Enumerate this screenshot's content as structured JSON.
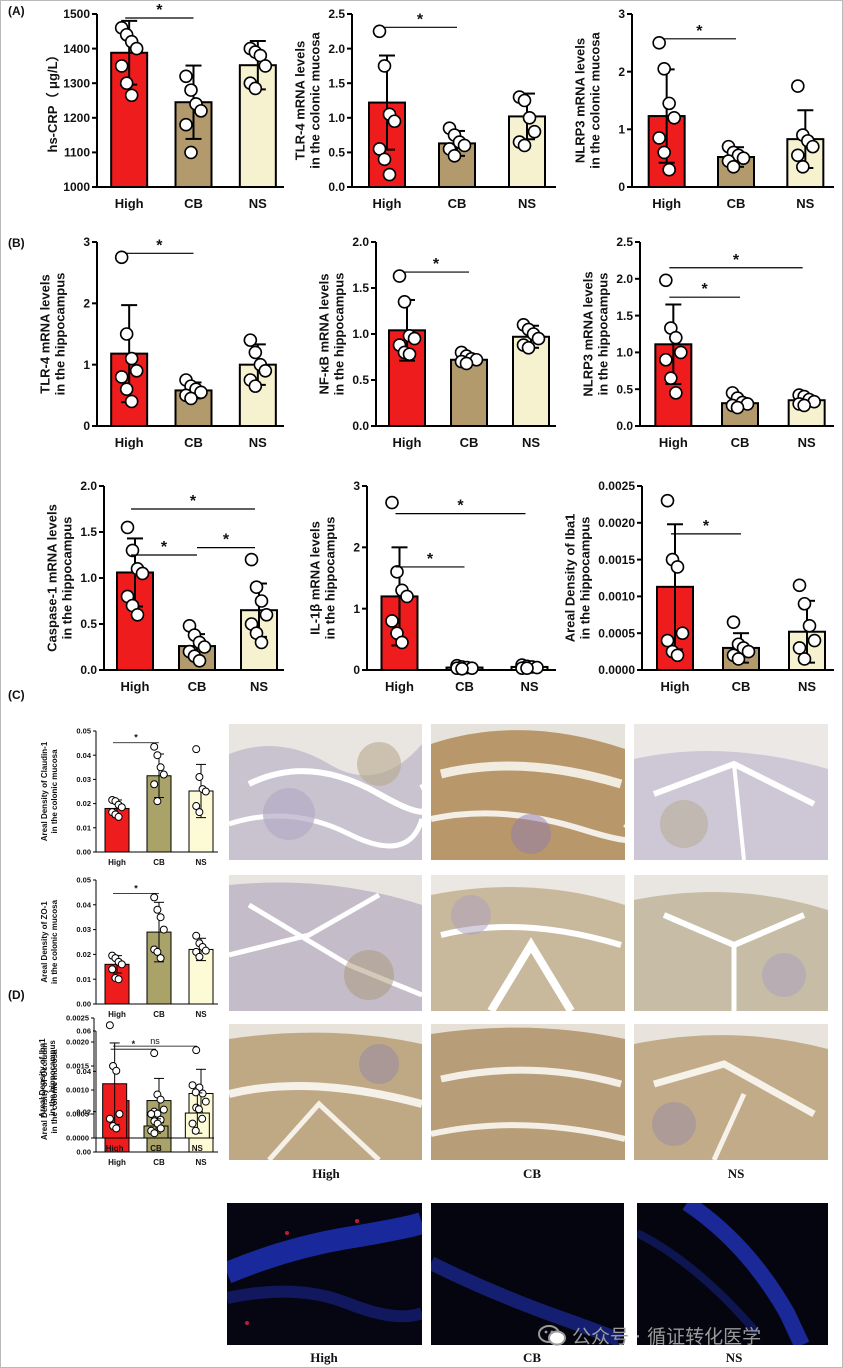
{
  "panel_letters": [
    "(A)",
    "(B)",
    "(C)",
    "(D)"
  ],
  "group_labels": [
    "High",
    "CB",
    "NS"
  ],
  "watermark_text": "公众号 · 循证转化医学",
  "colors": {
    "high_bar": "#ee1c1c",
    "cb_bar": "#b29a6d",
    "ns_bar": "#f6f2cf",
    "cb_bar_c": "#a9a36a",
    "ns_bar_c": "#fdfbd5",
    "ihc_background": "#e9e6e2",
    "if_background": "#050612"
  },
  "chart_data": [
    {
      "id": "A1",
      "type": "bar",
      "ylabel": [
        "hs-CRP（ μg/L）"
      ],
      "categories": [
        "High",
        "CB",
        "NS"
      ],
      "values": [
        1388,
        1245,
        1352
      ],
      "errors": [
        92,
        106,
        70
      ],
      "points": [
        [
          1460,
          1440,
          1420,
          1400,
          1350,
          1300,
          1265
        ],
        [
          1320,
          1280,
          1240,
          1220,
          1180,
          1100
        ],
        [
          1400,
          1390,
          1380,
          1350,
          1300,
          1285
        ]
      ],
      "ylim": [
        1000,
        1500
      ],
      "yticks": [
        "1000",
        "1100",
        "1200",
        "1300",
        "1400",
        "1500"
      ],
      "sig": [
        {
          "from": 0,
          "to": 1,
          "label": "*"
        }
      ]
    },
    {
      "id": "A2",
      "type": "bar",
      "ylabel": [
        "TLR-4 mRNA levels",
        "in the colonic mucosa"
      ],
      "categories": [
        "High",
        "CB",
        "NS"
      ],
      "values": [
        1.22,
        0.63,
        1.02
      ],
      "errors": [
        0.68,
        0.18,
        0.33
      ],
      "points": [
        [
          2.25,
          1.75,
          1.05,
          0.95,
          0.55,
          0.4,
          0.18
        ],
        [
          0.85,
          0.75,
          0.65,
          0.6,
          0.55,
          0.45
        ],
        [
          1.3,
          1.25,
          1.0,
          0.8,
          0.65,
          0.6
        ]
      ],
      "ylim": [
        0,
        2.5
      ],
      "yticks": [
        "0.0",
        "0.5",
        "1.0",
        "1.5",
        "2.0",
        "2.5"
      ],
      "sig": [
        {
          "from": 0,
          "to": 1,
          "label": "*"
        }
      ]
    },
    {
      "id": "A3",
      "type": "bar",
      "ylabel": [
        "NLRP3 mRNA levels",
        "in the colonic mucosa"
      ],
      "categories": [
        "High",
        "CB",
        "NS"
      ],
      "values": [
        1.23,
        0.52,
        0.83
      ],
      "errors": [
        0.81,
        0.17,
        0.5
      ],
      "points": [
        [
          2.5,
          2.05,
          1.45,
          1.2,
          0.85,
          0.6,
          0.3
        ],
        [
          0.7,
          0.6,
          0.55,
          0.5,
          0.45,
          0.35
        ],
        [
          1.75,
          0.9,
          0.8,
          0.7,
          0.55,
          0.35
        ]
      ],
      "ylim": [
        0,
        3
      ],
      "yticks": [
        "0",
        "1",
        "2",
        "3"
      ],
      "sig": [
        {
          "from": 0,
          "to": 1,
          "label": "*"
        }
      ]
    },
    {
      "id": "B1",
      "type": "bar",
      "ylabel": [
        "TLR-4 mRNA levels",
        "in the hippocampus"
      ],
      "categories": [
        "High",
        "CB",
        "NS"
      ],
      "values": [
        1.18,
        0.58,
        1.0
      ],
      "errors": [
        0.79,
        0.13,
        0.33
      ],
      "points": [
        [
          2.75,
          1.5,
          1.1,
          0.9,
          0.8,
          0.6,
          0.4
        ],
        [
          0.75,
          0.65,
          0.6,
          0.55,
          0.5,
          0.45
        ],
        [
          1.4,
          1.2,
          1.0,
          0.9,
          0.75,
          0.65
        ]
      ],
      "ylim": [
        0,
        3
      ],
      "yticks": [
        "0",
        "1",
        "2",
        "3"
      ],
      "sig": [
        {
          "from": 0,
          "to": 1,
          "label": "*"
        }
      ]
    },
    {
      "id": "B2",
      "type": "bar",
      "ylabel": [
        "NF-κB mRNA levels",
        "in the hippocampus"
      ],
      "categories": [
        "High",
        "CB",
        "NS"
      ],
      "values": [
        1.04,
        0.72,
        0.97
      ],
      "errors": [
        0.33,
        0.05,
        0.12
      ],
      "points": [
        [
          1.63,
          1.35,
          0.98,
          0.95,
          0.88,
          0.8,
          0.78
        ],
        [
          0.8,
          0.76,
          0.73,
          0.72,
          0.7,
          0.68
        ],
        [
          1.1,
          1.05,
          1.0,
          0.95,
          0.88,
          0.85
        ]
      ],
      "ylim": [
        0,
        2
      ],
      "yticks": [
        "0.0",
        "0.5",
        "1.0",
        "1.5",
        "2.0"
      ],
      "sig": [
        {
          "from": 0,
          "to": 1,
          "label": "*"
        }
      ]
    },
    {
      "id": "B3",
      "type": "bar",
      "ylabel": [
        "NLRP3 mRNA levels",
        "in the hippocampus"
      ],
      "categories": [
        "High",
        "CB",
        "NS"
      ],
      "values": [
        1.11,
        0.31,
        0.35
      ],
      "errors": [
        0.54,
        0.07,
        0.06
      ],
      "points": [
        [
          1.98,
          1.33,
          1.2,
          1.0,
          0.9,
          0.65,
          0.45
        ],
        [
          0.45,
          0.38,
          0.32,
          0.3,
          0.28,
          0.25
        ],
        [
          0.42,
          0.4,
          0.36,
          0.33,
          0.3,
          0.28
        ]
      ],
      "ylim": [
        0,
        2.5
      ],
      "yticks": [
        "0.0",
        "0.5",
        "1.0",
        "1.5",
        "2.0",
        "2.5"
      ],
      "sig": [
        {
          "from": 0,
          "to": 1,
          "label": "*"
        },
        {
          "from": 0,
          "to": 2,
          "label": "*"
        }
      ]
    },
    {
      "id": "B4",
      "type": "bar",
      "ylabel": [
        "Caspase-1 mRNA levels",
        "in the hippocampus"
      ],
      "categories": [
        "High",
        "CB",
        "NS"
      ],
      "values": [
        1.06,
        0.26,
        0.65
      ],
      "errors": [
        0.37,
        0.13,
        0.29
      ],
      "points": [
        [
          1.55,
          1.3,
          1.1,
          1.05,
          0.8,
          0.7,
          0.6
        ],
        [
          0.48,
          0.38,
          0.3,
          0.25,
          0.2,
          0.15,
          0.1
        ],
        [
          1.2,
          0.9,
          0.75,
          0.6,
          0.5,
          0.4,
          0.3
        ]
      ],
      "ylim": [
        0,
        2
      ],
      "yticks": [
        "0.0",
        "0.5",
        "1.0",
        "1.5",
        "2.0"
      ],
      "sig": [
        {
          "from": 0,
          "to": 1,
          "label": "*"
        },
        {
          "from": 0,
          "to": 2,
          "label": "*"
        },
        {
          "from": 1,
          "to": 2,
          "label": "*"
        }
      ]
    },
    {
      "id": "B5",
      "type": "bar",
      "ylabel": [
        "IL-1β mRNA levels",
        "in the hippocampus"
      ],
      "categories": [
        "High",
        "CB",
        "NS"
      ],
      "values": [
        1.2,
        0.04,
        0.05
      ],
      "errors": [
        0.8,
        0.02,
        0.02
      ],
      "points": [
        [
          2.73,
          1.6,
          1.3,
          1.2,
          0.8,
          0.6,
          0.45
        ],
        [
          0.07,
          0.05,
          0.04,
          0.03,
          0.03,
          0.02
        ],
        [
          0.08,
          0.06,
          0.05,
          0.04,
          0.03,
          0.03
        ]
      ],
      "ylim": [
        0,
        3
      ],
      "yticks": [
        "0",
        "1",
        "2",
        "3"
      ],
      "sig": [
        {
          "from": 0,
          "to": 1,
          "label": "*"
        },
        {
          "from": 0,
          "to": 2,
          "label": "*"
        }
      ]
    },
    {
      "id": "B6",
      "type": "bar",
      "ylabel": [
        "Areal Density of Iba1",
        "in the hippocampus"
      ],
      "categories": [
        "High",
        "CB",
        "NS"
      ],
      "values": [
        0.00113,
        0.0003,
        0.00052
      ],
      "errors": [
        0.00085,
        0.0002,
        0.00042
      ],
      "points": [
        [
          0.0023,
          0.0015,
          0.0014,
          0.0005,
          0.0004,
          0.00025,
          0.0002
        ],
        [
          0.00065,
          0.00035,
          0.0003,
          0.00025,
          0.0002,
          0.00015
        ],
        [
          0.00115,
          0.0009,
          0.0006,
          0.0004,
          0.0003,
          0.00015
        ]
      ],
      "ylim": [
        0,
        0.0025
      ],
      "yticks": [
        "0.0000",
        "0.0005",
        "0.0010",
        "0.0015",
        "0.0020",
        "0.0025"
      ],
      "sig": [
        {
          "from": 0,
          "to": 1,
          "label": "*"
        }
      ]
    },
    {
      "id": "C1",
      "type": "bar",
      "ylabel": [
        "Areal Density of Claudin-1",
        "in the colonic mucosa"
      ],
      "categories": [
        "High",
        "CB",
        "NS"
      ],
      "values": [
        0.018,
        0.0315,
        0.0252
      ],
      "errors": [
        0.0035,
        0.009,
        0.011
      ],
      "points": [
        [
          0.0215,
          0.021,
          0.0195,
          0.0185,
          0.0165,
          0.0155,
          0.0145
        ],
        [
          0.0435,
          0.04,
          0.035,
          0.032,
          0.028,
          0.021
        ],
        [
          0.0425,
          0.031,
          0.026,
          0.025,
          0.019,
          0.0165
        ]
      ],
      "ylim": [
        0,
        0.05
      ],
      "yticks": [
        "0.00",
        "0.01",
        "0.02",
        "0.03",
        "0.04",
        "0.05"
      ],
      "sig": [
        {
          "from": 0,
          "to": 1,
          "label": "*"
        }
      ]
    },
    {
      "id": "C2",
      "type": "bar",
      "ylabel": [
        "Areal Density of ZO-1",
        "in the colonic mucosa"
      ],
      "categories": [
        "High",
        "CB",
        "NS"
      ],
      "values": [
        0.016,
        0.029,
        0.022
      ],
      "errors": [
        0.0035,
        0.012,
        0.0045
      ],
      "points": [
        [
          0.0195,
          0.0185,
          0.017,
          0.016,
          0.014,
          0.0105,
          0.01
        ],
        [
          0.043,
          0.038,
          0.035,
          0.03,
          0.022,
          0.021,
          0.0185
        ],
        [
          0.0275,
          0.0245,
          0.023,
          0.0215,
          0.021,
          0.019
        ]
      ],
      "ylim": [
        0,
        0.05
      ],
      "yticks": [
        "0.00",
        "0.01",
        "0.02",
        "0.03",
        "0.04",
        "0.05"
      ],
      "sig": [
        {
          "from": 0,
          "to": 1,
          "label": "*"
        }
      ]
    },
    {
      "id": "C3",
      "type": "bar",
      "ylabel": [
        "Areal Density of Occludin",
        "in the colonic mucosa"
      ],
      "categories": [
        "High",
        "CB",
        "NS"
      ],
      "values": [
        0.0255,
        0.0255,
        0.029
      ],
      "errors": [
        0.0045,
        0.011,
        0.012
      ],
      "points": [
        [
          0.029,
          0.0275,
          0.0255,
          0.024,
          0.022,
          0.02,
          0.0165
        ],
        [
          0.049,
          0.0285,
          0.026,
          0.021,
          0.02,
          0.019,
          0.016
        ],
        [
          0.0505,
          0.032,
          0.029,
          0.025,
          0.022,
          0.019
        ]
      ],
      "ylim": [
        0,
        0.06
      ],
      "yticks": [
        "0.00",
        "0.02",
        "0.04",
        "0.06"
      ],
      "sig": [
        {
          "from": 0,
          "to": 2,
          "label": "ns"
        }
      ]
    },
    {
      "id": "D1",
      "type": "bar",
      "ylabel": [
        "Areal Density of Iba1",
        "in the hippocampus"
      ],
      "categories": [
        "High",
        "CB",
        "NS"
      ],
      "values": [
        0.00113,
        0.00025,
        0.00052
      ],
      "errors": [
        0.00085,
        0.00015,
        0.00042
      ],
      "points": [
        [
          0.00235,
          0.0015,
          0.0014,
          0.0005,
          0.0004,
          0.00025,
          0.0002
        ],
        [
          0.0005,
          0.00035,
          0.0003,
          0.0002,
          0.00015,
          0.0001
        ],
        [
          0.0011,
          0.00095,
          0.0006,
          0.0004,
          0.0003,
          0.00015
        ]
      ],
      "ylim": [
        0,
        0.0025
      ],
      "yticks": [
        "0.0000",
        "0.0005",
        "0.0010",
        "0.0015",
        "0.0020",
        "0.0025"
      ],
      "sig": [
        {
          "from": 0,
          "to": 1,
          "label": "*"
        }
      ]
    }
  ]
}
